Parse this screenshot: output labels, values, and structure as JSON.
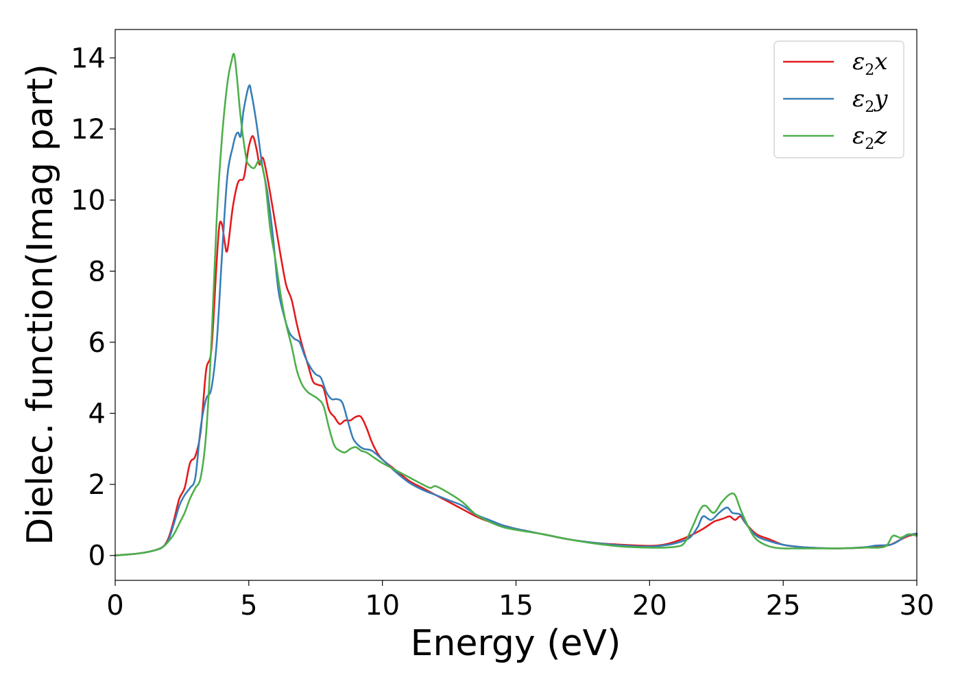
{
  "chart_data": {
    "type": "line",
    "xlabel": "Energy (eV)",
    "ylabel": "Dielec. function(Imag part)",
    "xlim": [
      0,
      30
    ],
    "ylim": [
      -0.7,
      14.8
    ],
    "xticks": [
      "0",
      "5",
      "10",
      "15",
      "20",
      "25",
      "30"
    ],
    "yticks": [
      "0",
      "2",
      "4",
      "6",
      "8",
      "10",
      "12",
      "14"
    ],
    "grid": false,
    "legend_position": "top-right",
    "series": [
      {
        "name": "ε2x",
        "legend": {
          "symbol": "ε",
          "sub": "2",
          "axis": "x"
        },
        "color": "#e41a1c",
        "points": [
          [
            0,
            0
          ],
          [
            0.5,
            0.03
          ],
          [
            1.0,
            0.07
          ],
          [
            1.5,
            0.15
          ],
          [
            1.8,
            0.25
          ],
          [
            2.0,
            0.5
          ],
          [
            2.2,
            1.0
          ],
          [
            2.4,
            1.6
          ],
          [
            2.6,
            1.9
          ],
          [
            2.8,
            2.6
          ],
          [
            3.0,
            2.8
          ],
          [
            3.2,
            3.5
          ],
          [
            3.4,
            5.2
          ],
          [
            3.6,
            5.8
          ],
          [
            3.8,
            8.3
          ],
          [
            3.9,
            9.3
          ],
          [
            4.0,
            9.3
          ],
          [
            4.1,
            8.8
          ],
          [
            4.2,
            8.6
          ],
          [
            4.4,
            9.8
          ],
          [
            4.6,
            10.5
          ],
          [
            4.8,
            10.6
          ],
          [
            4.9,
            11.0
          ],
          [
            5.0,
            11.5
          ],
          [
            5.15,
            11.8
          ],
          [
            5.3,
            11.4
          ],
          [
            5.4,
            11.0
          ],
          [
            5.5,
            11.2
          ],
          [
            5.6,
            11.0
          ],
          [
            5.8,
            10.2
          ],
          [
            6.0,
            9.3
          ],
          [
            6.2,
            8.4
          ],
          [
            6.4,
            7.6
          ],
          [
            6.6,
            7.2
          ],
          [
            6.8,
            6.5
          ],
          [
            7.0,
            5.9
          ],
          [
            7.2,
            5.4
          ],
          [
            7.4,
            4.9
          ],
          [
            7.6,
            4.8
          ],
          [
            7.8,
            4.7
          ],
          [
            8.0,
            4.1
          ],
          [
            8.2,
            3.9
          ],
          [
            8.4,
            3.7
          ],
          [
            8.6,
            3.8
          ],
          [
            8.8,
            3.8
          ],
          [
            9.0,
            3.9
          ],
          [
            9.2,
            3.9
          ],
          [
            9.4,
            3.6
          ],
          [
            9.6,
            3.2
          ],
          [
            9.8,
            2.9
          ],
          [
            10.0,
            2.7
          ],
          [
            10.5,
            2.4
          ],
          [
            11.0,
            2.1
          ],
          [
            11.5,
            1.9
          ],
          [
            12.0,
            1.7
          ],
          [
            12.5,
            1.5
          ],
          [
            13.0,
            1.3
          ],
          [
            13.5,
            1.1
          ],
          [
            14.0,
            0.95
          ],
          [
            14.5,
            0.85
          ],
          [
            15.0,
            0.75
          ],
          [
            16.0,
            0.6
          ],
          [
            17.0,
            0.45
          ],
          [
            18.0,
            0.35
          ],
          [
            19.0,
            0.3
          ],
          [
            20.0,
            0.27
          ],
          [
            20.5,
            0.3
          ],
          [
            21.0,
            0.4
          ],
          [
            21.5,
            0.55
          ],
          [
            22.0,
            0.75
          ],
          [
            22.4,
            0.95
          ],
          [
            22.6,
            1.0
          ],
          [
            22.8,
            1.05
          ],
          [
            23.0,
            1.1
          ],
          [
            23.2,
            1.0
          ],
          [
            23.4,
            1.1
          ],
          [
            23.6,
            0.9
          ],
          [
            24.0,
            0.6
          ],
          [
            24.5,
            0.45
          ],
          [
            25.0,
            0.3
          ],
          [
            25.5,
            0.25
          ],
          [
            26.0,
            0.22
          ],
          [
            27.0,
            0.2
          ],
          [
            28.0,
            0.22
          ],
          [
            28.5,
            0.25
          ],
          [
            29.0,
            0.3
          ],
          [
            29.4,
            0.45
          ],
          [
            29.7,
            0.55
          ],
          [
            30.0,
            0.6
          ]
        ]
      },
      {
        "name": "ε2y",
        "legend": {
          "symbol": "ε",
          "sub": "2",
          "axis": "y"
        },
        "color": "#377eb8",
        "points": [
          [
            0,
            0
          ],
          [
            0.5,
            0.03
          ],
          [
            1.0,
            0.07
          ],
          [
            1.5,
            0.15
          ],
          [
            1.8,
            0.25
          ],
          [
            2.0,
            0.45
          ],
          [
            2.2,
            0.9
          ],
          [
            2.4,
            1.4
          ],
          [
            2.6,
            1.7
          ],
          [
            2.8,
            1.9
          ],
          [
            3.0,
            2.2
          ],
          [
            3.2,
            3.6
          ],
          [
            3.4,
            4.4
          ],
          [
            3.6,
            4.7
          ],
          [
            3.8,
            6.0
          ],
          [
            4.0,
            8.5
          ],
          [
            4.2,
            10.7
          ],
          [
            4.4,
            11.5
          ],
          [
            4.5,
            11.8
          ],
          [
            4.6,
            11.9
          ],
          [
            4.7,
            11.8
          ],
          [
            4.8,
            12.5
          ],
          [
            5.0,
            13.2
          ],
          [
            5.1,
            13.0
          ],
          [
            5.3,
            12.1
          ],
          [
            5.5,
            11.0
          ],
          [
            5.7,
            10.2
          ],
          [
            5.9,
            9.0
          ],
          [
            6.1,
            7.5
          ],
          [
            6.3,
            6.8
          ],
          [
            6.5,
            6.3
          ],
          [
            6.7,
            6.1
          ],
          [
            6.9,
            6.0
          ],
          [
            7.1,
            5.6
          ],
          [
            7.3,
            5.3
          ],
          [
            7.5,
            5.1
          ],
          [
            7.7,
            5.0
          ],
          [
            7.9,
            4.6
          ],
          [
            8.1,
            4.4
          ],
          [
            8.3,
            4.4
          ],
          [
            8.5,
            4.3
          ],
          [
            8.7,
            3.8
          ],
          [
            8.9,
            3.3
          ],
          [
            9.1,
            3.1
          ],
          [
            9.3,
            3.0
          ],
          [
            9.6,
            2.95
          ],
          [
            10.0,
            2.7
          ],
          [
            10.5,
            2.35
          ],
          [
            11.0,
            2.05
          ],
          [
            11.5,
            1.85
          ],
          [
            12.0,
            1.7
          ],
          [
            12.5,
            1.55
          ],
          [
            13.0,
            1.4
          ],
          [
            13.5,
            1.15
          ],
          [
            14.0,
            1.0
          ],
          [
            14.5,
            0.85
          ],
          [
            15.0,
            0.75
          ],
          [
            16.0,
            0.6
          ],
          [
            17.0,
            0.45
          ],
          [
            18.0,
            0.35
          ],
          [
            19.0,
            0.28
          ],
          [
            20.0,
            0.25
          ],
          [
            20.5,
            0.28
          ],
          [
            21.0,
            0.35
          ],
          [
            21.5,
            0.5
          ],
          [
            21.8,
            0.8
          ],
          [
            22.0,
            1.1
          ],
          [
            22.3,
            1.0
          ],
          [
            22.6,
            1.2
          ],
          [
            22.9,
            1.35
          ],
          [
            23.1,
            1.2
          ],
          [
            23.4,
            1.15
          ],
          [
            23.6,
            0.9
          ],
          [
            24.0,
            0.55
          ],
          [
            24.5,
            0.4
          ],
          [
            25.0,
            0.3
          ],
          [
            25.5,
            0.25
          ],
          [
            26.0,
            0.22
          ],
          [
            27.0,
            0.2
          ],
          [
            28.0,
            0.23
          ],
          [
            28.5,
            0.28
          ],
          [
            29.0,
            0.3
          ],
          [
            29.3,
            0.4
          ],
          [
            29.6,
            0.55
          ],
          [
            30.0,
            0.62
          ]
        ]
      },
      {
        "name": "ε2z",
        "legend": {
          "symbol": "ε",
          "sub": "2",
          "axis": "z"
        },
        "color": "#4daf4a",
        "points": [
          [
            0,
            0
          ],
          [
            0.5,
            0.03
          ],
          [
            1.0,
            0.07
          ],
          [
            1.5,
            0.15
          ],
          [
            1.8,
            0.25
          ],
          [
            2.0,
            0.4
          ],
          [
            2.2,
            0.6
          ],
          [
            2.4,
            0.9
          ],
          [
            2.6,
            1.2
          ],
          [
            2.8,
            1.6
          ],
          [
            3.0,
            1.9
          ],
          [
            3.2,
            2.2
          ],
          [
            3.4,
            3.4
          ],
          [
            3.6,
            6.0
          ],
          [
            3.8,
            9.5
          ],
          [
            4.0,
            11.8
          ],
          [
            4.2,
            13.3
          ],
          [
            4.35,
            13.9
          ],
          [
            4.45,
            14.1
          ],
          [
            4.55,
            13.5
          ],
          [
            4.7,
            12.3
          ],
          [
            4.9,
            11.2
          ],
          [
            5.0,
            11.0
          ],
          [
            5.2,
            10.9
          ],
          [
            5.4,
            11.1
          ],
          [
            5.6,
            10.6
          ],
          [
            5.8,
            9.2
          ],
          [
            6.0,
            8.3
          ],
          [
            6.2,
            7.3
          ],
          [
            6.4,
            6.5
          ],
          [
            6.6,
            5.9
          ],
          [
            6.8,
            5.2
          ],
          [
            7.0,
            4.8
          ],
          [
            7.2,
            4.6
          ],
          [
            7.4,
            4.5
          ],
          [
            7.6,
            4.4
          ],
          [
            7.8,
            4.2
          ],
          [
            8.0,
            3.6
          ],
          [
            8.2,
            3.1
          ],
          [
            8.4,
            2.95
          ],
          [
            8.6,
            2.9
          ],
          [
            8.8,
            3.0
          ],
          [
            9.0,
            3.05
          ],
          [
            9.2,
            2.95
          ],
          [
            9.4,
            2.9
          ],
          [
            9.6,
            2.8
          ],
          [
            10.0,
            2.6
          ],
          [
            10.5,
            2.4
          ],
          [
            11.0,
            2.2
          ],
          [
            11.5,
            2.0
          ],
          [
            11.8,
            1.9
          ],
          [
            12.0,
            1.95
          ],
          [
            12.5,
            1.75
          ],
          [
            13.0,
            1.5
          ],
          [
            13.5,
            1.15
          ],
          [
            14.0,
            0.95
          ],
          [
            14.5,
            0.8
          ],
          [
            15.0,
            0.72
          ],
          [
            16.0,
            0.6
          ],
          [
            17.0,
            0.45
          ],
          [
            18.0,
            0.33
          ],
          [
            19.0,
            0.25
          ],
          [
            20.0,
            0.22
          ],
          [
            20.5,
            0.22
          ],
          [
            21.0,
            0.25
          ],
          [
            21.3,
            0.35
          ],
          [
            21.6,
            0.8
          ],
          [
            21.9,
            1.3
          ],
          [
            22.1,
            1.4
          ],
          [
            22.4,
            1.2
          ],
          [
            22.7,
            1.5
          ],
          [
            23.0,
            1.72
          ],
          [
            23.2,
            1.7
          ],
          [
            23.4,
            1.3
          ],
          [
            23.7,
            0.8
          ],
          [
            24.0,
            0.45
          ],
          [
            24.5,
            0.25
          ],
          [
            25.0,
            0.2
          ],
          [
            25.5,
            0.2
          ],
          [
            26.0,
            0.2
          ],
          [
            27.0,
            0.2
          ],
          [
            28.0,
            0.22
          ],
          [
            28.8,
            0.25
          ],
          [
            29.1,
            0.55
          ],
          [
            29.4,
            0.5
          ],
          [
            29.7,
            0.6
          ],
          [
            30.0,
            0.55
          ]
        ]
      }
    ]
  }
}
